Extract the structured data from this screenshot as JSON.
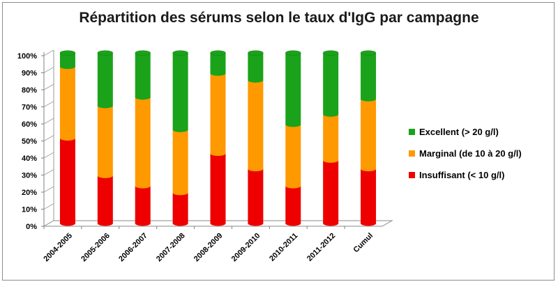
{
  "chart_data": {
    "type": "bar",
    "stacked": true,
    "percent_stacked": true,
    "title": "Répartition des sérums selon le taux d'IgG par campagne",
    "categories": [
      "2004-2005",
      "2005-2006",
      "2006-2007",
      "2007-2008",
      "2008-2009",
      "2009-2010",
      "2010-2011",
      "2011-2012",
      "Cumul"
    ],
    "series": [
      {
        "name": "Insuffisant (< 10 g/l)",
        "color": "#ee0000",
        "values": [
          50,
          28,
          22,
          18,
          41,
          32,
          22,
          37,
          32
        ]
      },
      {
        "name": "Marginal (de 10 à 20 g/l)",
        "color": "#ff9900",
        "values": [
          42,
          41,
          52,
          37,
          47,
          52,
          36,
          27,
          41
        ]
      },
      {
        "name": "Excellent (> 20 g/l)",
        "color": "#1aa31a",
        "values": [
          8,
          31,
          26,
          45,
          12,
          16,
          42,
          36,
          27
        ]
      }
    ],
    "legend_order": [
      "Excellent (> 20 g/l)",
      "Marginal (de 10 à 20 g/l)",
      "Insuffisant (< 10 g/l)"
    ],
    "ylim": [
      0,
      100
    ],
    "yticks": [
      "0%",
      "10%",
      "20%",
      "30%",
      "40%",
      "50%",
      "60%",
      "70%",
      "80%",
      "90%",
      "100%"
    ],
    "grid": false,
    "legend_position": "right"
  }
}
